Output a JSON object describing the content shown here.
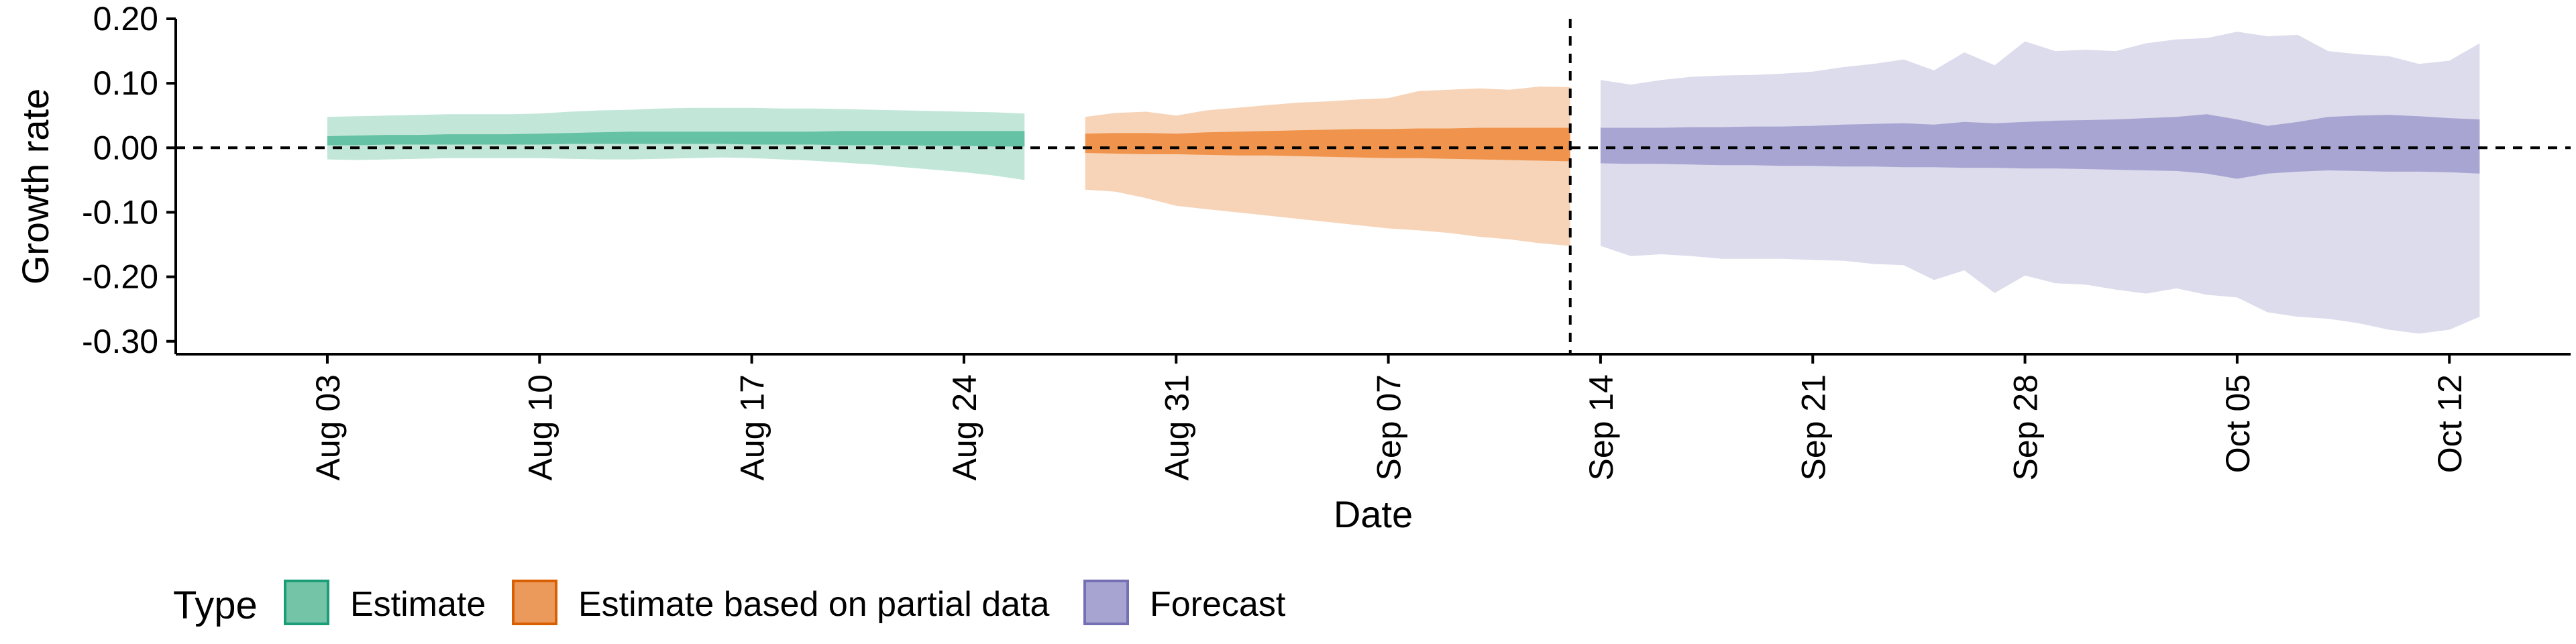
{
  "chart_data": {
    "type": "area",
    "xlabel": "Date",
    "ylabel": "Growth rate",
    "x_axis_type": "date",
    "xlim": [
      "2020-07-29",
      "2020-10-16"
    ],
    "ylim": [
      -0.32,
      0.2
    ],
    "x_ticks": [
      {
        "date": "2020-08-03",
        "label": "Aug 03"
      },
      {
        "date": "2020-08-10",
        "label": "Aug 10"
      },
      {
        "date": "2020-08-17",
        "label": "Aug 17"
      },
      {
        "date": "2020-08-24",
        "label": "Aug 24"
      },
      {
        "date": "2020-08-31",
        "label": "Aug 31"
      },
      {
        "date": "2020-09-07",
        "label": "Sep 07"
      },
      {
        "date": "2020-09-14",
        "label": "Sep 14"
      },
      {
        "date": "2020-09-21",
        "label": "Sep 21"
      },
      {
        "date": "2020-09-28",
        "label": "Sep 28"
      },
      {
        "date": "2020-10-05",
        "label": "Oct 05"
      },
      {
        "date": "2020-10-12",
        "label": "Oct 12"
      }
    ],
    "y_ticks": [
      {
        "value": 0.2,
        "label": "0.20"
      },
      {
        "value": 0.1,
        "label": "0.10"
      },
      {
        "value": 0.0,
        "label": "0.00"
      },
      {
        "value": -0.1,
        "label": "-0.10"
      },
      {
        "value": -0.2,
        "label": "-0.20"
      },
      {
        "value": -0.3,
        "label": "-0.30"
      }
    ],
    "reference_lines": {
      "horizontal_y": 0.0,
      "vertical_date": "2020-09-13",
      "style": "dashed"
    },
    "legend": {
      "title": "Type",
      "position": "bottom",
      "entries": [
        {
          "label": "Estimate",
          "fill": "#74c4a8",
          "border": "#1b9e77"
        },
        {
          "label": "Estimate based on partial data",
          "fill": "#eb9a5b",
          "border": "#d95f02"
        },
        {
          "label": "Forecast",
          "fill": "#a7a4d1",
          "border": "#7570b3"
        }
      ]
    },
    "series": [
      {
        "name": "Estimate",
        "colors": {
          "outer": "#c2e7d9",
          "inner": "#66c2a5"
        },
        "dates": [
          "2020-08-03",
          "2020-08-04",
          "2020-08-05",
          "2020-08-06",
          "2020-08-07",
          "2020-08-08",
          "2020-08-09",
          "2020-08-10",
          "2020-08-11",
          "2020-08-12",
          "2020-08-13",
          "2020-08-14",
          "2020-08-15",
          "2020-08-16",
          "2020-08-17",
          "2020-08-18",
          "2020-08-19",
          "2020-08-20",
          "2020-08-21",
          "2020-08-22",
          "2020-08-23",
          "2020-08-24",
          "2020-08-25",
          "2020-08-26"
        ],
        "outer_upper": [
          0.048,
          0.049,
          0.05,
          0.051,
          0.052,
          0.052,
          0.052,
          0.053,
          0.056,
          0.058,
          0.059,
          0.061,
          0.062,
          0.062,
          0.062,
          0.061,
          0.061,
          0.06,
          0.059,
          0.058,
          0.057,
          0.056,
          0.055,
          0.053
        ],
        "outer_lower": [
          -0.018,
          -0.019,
          -0.018,
          -0.017,
          -0.016,
          -0.016,
          -0.016,
          -0.016,
          -0.017,
          -0.018,
          -0.018,
          -0.017,
          -0.016,
          -0.015,
          -0.016,
          -0.018,
          -0.02,
          -0.023,
          -0.026,
          -0.03,
          -0.034,
          -0.038,
          -0.043,
          -0.05
        ],
        "inner_upper": [
          0.018,
          0.019,
          0.02,
          0.02,
          0.021,
          0.021,
          0.021,
          0.022,
          0.023,
          0.024,
          0.025,
          0.025,
          0.025,
          0.025,
          0.025,
          0.025,
          0.025,
          0.026,
          0.026,
          0.026,
          0.026,
          0.026,
          0.026,
          0.026
        ],
        "inner_lower": [
          0.004,
          0.004,
          0.005,
          0.005,
          0.005,
          0.005,
          0.005,
          0.005,
          0.006,
          0.006,
          0.006,
          0.006,
          0.006,
          0.006,
          0.005,
          0.005,
          0.005,
          0.004,
          0.004,
          0.004,
          0.003,
          0.003,
          0.002,
          0.002
        ]
      },
      {
        "name": "Estimate based on partial data",
        "colors": {
          "outer": "#f7d4b8",
          "inner": "#f0944d"
        },
        "dates": [
          "2020-08-28",
          "2020-08-29",
          "2020-08-30",
          "2020-08-31",
          "2020-09-01",
          "2020-09-02",
          "2020-09-03",
          "2020-09-04",
          "2020-09-05",
          "2020-09-06",
          "2020-09-07",
          "2020-09-08",
          "2020-09-09",
          "2020-09-10",
          "2020-09-11",
          "2020-09-12",
          "2020-09-13"
        ],
        "outer_upper": [
          0.048,
          0.054,
          0.056,
          0.05,
          0.058,
          0.062,
          0.066,
          0.07,
          0.072,
          0.075,
          0.077,
          0.088,
          0.09,
          0.092,
          0.09,
          0.095,
          0.094
        ],
        "outer_lower": [
          -0.065,
          -0.068,
          -0.078,
          -0.09,
          -0.095,
          -0.1,
          -0.105,
          -0.11,
          -0.115,
          -0.12,
          -0.125,
          -0.128,
          -0.132,
          -0.138,
          -0.142,
          -0.148,
          -0.152
        ],
        "inner_upper": [
          0.022,
          0.023,
          0.023,
          0.022,
          0.024,
          0.025,
          0.026,
          0.027,
          0.028,
          0.029,
          0.029,
          0.03,
          0.03,
          0.031,
          0.031,
          0.031,
          0.031
        ],
        "inner_lower": [
          -0.008,
          -0.009,
          -0.01,
          -0.01,
          -0.011,
          -0.012,
          -0.012,
          -0.013,
          -0.014,
          -0.015,
          -0.016,
          -0.016,
          -0.017,
          -0.018,
          -0.019,
          -0.02,
          -0.021
        ]
      },
      {
        "name": "Forecast",
        "colors": {
          "outer": "#dcdcec",
          "inner": "#a8a5d3"
        },
        "dates": [
          "2020-09-14",
          "2020-09-15",
          "2020-09-16",
          "2020-09-17",
          "2020-09-18",
          "2020-09-19",
          "2020-09-20",
          "2020-09-21",
          "2020-09-22",
          "2020-09-23",
          "2020-09-24",
          "2020-09-25",
          "2020-09-26",
          "2020-09-27",
          "2020-09-28",
          "2020-09-29",
          "2020-09-30",
          "2020-10-01",
          "2020-10-02",
          "2020-10-03",
          "2020-10-04",
          "2020-10-05",
          "2020-10-06",
          "2020-10-07",
          "2020-10-08",
          "2020-10-09",
          "2020-10-10",
          "2020-10-11",
          "2020-10-12",
          "2020-10-13"
        ],
        "outer_upper": [
          0.105,
          0.098,
          0.105,
          0.11,
          0.112,
          0.113,
          0.115,
          0.118,
          0.125,
          0.13,
          0.137,
          0.12,
          0.148,
          0.128,
          0.165,
          0.15,
          0.152,
          0.15,
          0.162,
          0.168,
          0.17,
          0.18,
          0.173,
          0.175,
          0.15,
          0.145,
          0.142,
          0.13,
          0.135,
          0.162
        ],
        "outer_lower": [
          -0.152,
          -0.168,
          -0.165,
          -0.168,
          -0.172,
          -0.172,
          -0.172,
          -0.174,
          -0.175,
          -0.18,
          -0.182,
          -0.205,
          -0.19,
          -0.225,
          -0.198,
          -0.21,
          -0.212,
          -0.22,
          -0.226,
          -0.218,
          -0.228,
          -0.232,
          -0.255,
          -0.262,
          -0.265,
          -0.272,
          -0.282,
          -0.288,
          -0.282,
          -0.262
        ],
        "inner_upper": [
          0.031,
          0.031,
          0.031,
          0.032,
          0.032,
          0.033,
          0.033,
          0.034,
          0.036,
          0.037,
          0.038,
          0.036,
          0.04,
          0.038,
          0.04,
          0.042,
          0.043,
          0.044,
          0.046,
          0.048,
          0.052,
          0.044,
          0.034,
          0.04,
          0.048,
          0.05,
          0.051,
          0.049,
          0.046,
          0.044
        ],
        "inner_lower": [
          -0.024,
          -0.025,
          -0.025,
          -0.026,
          -0.027,
          -0.027,
          -0.028,
          -0.028,
          -0.029,
          -0.029,
          -0.03,
          -0.03,
          -0.031,
          -0.031,
          -0.032,
          -0.032,
          -0.033,
          -0.034,
          -0.035,
          -0.036,
          -0.04,
          -0.048,
          -0.04,
          -0.037,
          -0.035,
          -0.036,
          -0.037,
          -0.037,
          -0.038,
          -0.04
        ]
      }
    ]
  }
}
